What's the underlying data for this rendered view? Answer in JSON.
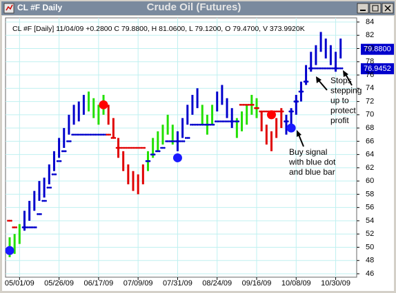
{
  "window_title": "CL #F Daily",
  "chart_data": {
    "type": "ohlc",
    "title": "Crude Oil (Futures)",
    "info": "CL #F [Daily] 11/04/09 +0.2800 C 79.8800, H 81.0600, L 79.1200, O 79.4700, V 373.9920K",
    "categories": [
      null,
      null,
      "05/01/09",
      null,
      null,
      null,
      null,
      null,
      null,
      null,
      "05/26/09",
      null,
      null,
      null,
      null,
      null,
      null,
      null,
      "06/17/09",
      null,
      null,
      null,
      null,
      null,
      null,
      null,
      "07/09/09",
      null,
      null,
      null,
      null,
      null,
      null,
      null,
      "07/31/09",
      null,
      null,
      null,
      null,
      null,
      null,
      null,
      "08/24/09",
      null,
      null,
      null,
      null,
      null,
      null,
      null,
      "09/16/09",
      null,
      null,
      null,
      null,
      null,
      null,
      null,
      "10/08/09",
      null,
      null,
      null,
      null,
      null,
      null,
      null,
      "10/30/09",
      null
    ],
    "high": [
      51.5,
      52,
      53.5,
      55.5,
      57,
      58.5,
      60,
      60.5,
      62.5,
      64.5,
      66.5,
      68,
      70,
      71.5,
      72,
      73,
      73.5,
      72.5,
      71.5,
      73,
      71.5,
      69.5,
      66.5,
      64.5,
      62.5,
      61.5,
      61,
      62.5,
      64.5,
      66.5,
      67.5,
      68.5,
      70,
      68.5,
      67.5,
      69.5,
      71.5,
      73,
      74,
      71.5,
      70,
      71.5,
      73.5,
      74.5,
      72.5,
      71,
      69.5,
      70.5,
      71.5,
      73,
      72.5,
      70.5,
      68.5,
      67.5,
      69.5,
      71,
      70,
      71,
      73,
      75,
      77.5,
      79.5,
      80.5,
      82.5,
      81.5,
      80.5,
      79.5,
      81.5
    ],
    "low": [
      48.5,
      49,
      50.5,
      52.5,
      54,
      55.5,
      57,
      57.5,
      59.5,
      61.5,
      63.5,
      65,
      67,
      68.5,
      69,
      70,
      70.5,
      69.5,
      68.5,
      70,
      68.5,
      66.5,
      63.5,
      61.5,
      59.5,
      58.5,
      58,
      59.5,
      61.5,
      63.5,
      64.5,
      65.5,
      67,
      65.5,
      64.5,
      66.5,
      68.5,
      70,
      71,
      68.5,
      67,
      68.5,
      70.5,
      71.5,
      69.5,
      68,
      66.5,
      67.5,
      68.5,
      70,
      69.5,
      67.5,
      65.5,
      64.5,
      66.5,
      68,
      67,
      68,
      70,
      72,
      74.5,
      76.5,
      77.5,
      79.5,
      78.5,
      77.5,
      76.5,
      78.5
    ],
    "bar_colors": [
      "#22e000",
      "#22e000",
      "#22e000",
      "#0000cc",
      "#0000cc",
      "#0000cc",
      "#0000cc",
      "#0000cc",
      "#0000cc",
      "#0000cc",
      "#0000cc",
      "#0000cc",
      "#0000cc",
      "#0000cc",
      "#0000cc",
      "#0000cc",
      "#22e000",
      "#22e000",
      "#22e000",
      "#22e000",
      "#e00000",
      "#e00000",
      "#e00000",
      "#e00000",
      "#e00000",
      "#e00000",
      "#e00000",
      "#e00000",
      "#22e000",
      "#22e000",
      "#22e000",
      "#22e000",
      "#22e000",
      "#22e000",
      "#0000cc",
      "#0000cc",
      "#0000cc",
      "#0000cc",
      "#0000cc",
      "#22e000",
      "#22e000",
      "#22e000",
      "#0000cc",
      "#0000cc",
      "#0000cc",
      "#0000cc",
      "#22e000",
      "#22e000",
      "#22e000",
      "#22e000",
      "#22e000",
      "#e00000",
      "#e00000",
      "#e00000",
      "#e00000",
      "#e00000",
      "#0000cc",
      "#0000cc",
      "#0000cc",
      "#0000cc",
      "#0000cc",
      "#0000cc",
      "#0000cc",
      "#0000cc",
      "#0000cc",
      "#0000cc",
      "#0000cc",
      "#0000cc"
    ],
    "series": [
      {
        "color": "#0000cc",
        "values": [
          null,
          null,
          null,
          53,
          53,
          53,
          55,
          57,
          59,
          61,
          63,
          64.5,
          66,
          67,
          67,
          67,
          67,
          67,
          67,
          67,
          null,
          null,
          null,
          null,
          null,
          null,
          null,
          null,
          63,
          64,
          64.5,
          65,
          66,
          66,
          66,
          66,
          66.5,
          68.5,
          68.5,
          68.5,
          68.5,
          68.5,
          69,
          69,
          69,
          69,
          69,
          null,
          null,
          null,
          null,
          null,
          null,
          null,
          null,
          null,
          69,
          70.5,
          72,
          73.5,
          75,
          77,
          77,
          77,
          77,
          77,
          77,
          77
        ]
      },
      {
        "color": "#e00000",
        "values": [
          54,
          53,
          null,
          null,
          null,
          null,
          null,
          null,
          null,
          null,
          null,
          null,
          null,
          null,
          null,
          null,
          null,
          null,
          null,
          null,
          67,
          66.5,
          65,
          65,
          65,
          65,
          65,
          65,
          null,
          null,
          null,
          null,
          null,
          null,
          null,
          null,
          null,
          null,
          null,
          null,
          null,
          null,
          null,
          null,
          null,
          null,
          null,
          71.5,
          71.5,
          71.5,
          71,
          70.5,
          70.5,
          70.5,
          70.5,
          70.5,
          null,
          null,
          null,
          null,
          null,
          null,
          null,
          null,
          null,
          null,
          null,
          null
        ]
      }
    ],
    "signals": [
      {
        "index": 0,
        "value": 49.5,
        "color": "#1a1aff"
      },
      {
        "index": 19,
        "value": 71.5,
        "color": "#ff0000"
      },
      {
        "index": 34,
        "value": 63.5,
        "color": "#1a1aff"
      },
      {
        "index": 53,
        "value": 70,
        "color": "#ff0000"
      },
      {
        "index": 57,
        "value": 68,
        "color": "#1a1aff"
      }
    ],
    "price_labels": [
      {
        "value": 79.88,
        "label": "79.8800"
      },
      {
        "value": 76.9452,
        "label": "76.9452"
      }
    ],
    "annotations": [
      [
        "Stops",
        "stepping",
        "up to",
        "protect",
        "profit"
      ],
      [
        "Buy signal",
        "with blue dot",
        "and blue bar"
      ]
    ],
    "ylim": [
      46,
      84
    ],
    "yticks": [
      46,
      48,
      50,
      52,
      54,
      56,
      58,
      60,
      62,
      64,
      66,
      68,
      70,
      72,
      74,
      76,
      78,
      80,
      82,
      84
    ],
    "grid": true
  }
}
